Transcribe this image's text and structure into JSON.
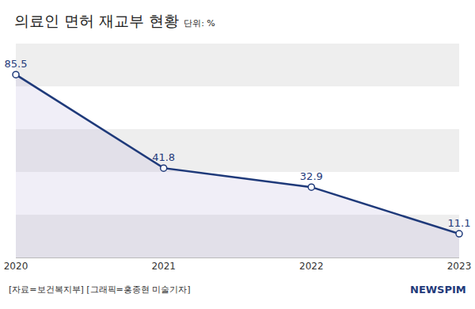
{
  "chart_data": {
    "type": "line",
    "title": "의료인 면허 재교부 현황",
    "subtitle": "단위: %",
    "categories": [
      "2020",
      "2021",
      "2022",
      "2023"
    ],
    "values": [
      85.5,
      41.8,
      32.9,
      11.1
    ],
    "color": "#1f3a7a",
    "marker": "circle",
    "data_labels": true,
    "tick_labels": "x",
    "ylim": [
      0,
      100
    ],
    "yticks": [
      0,
      20,
      40,
      60,
      80,
      100
    ],
    "grid": true,
    "annotations": [
      "[자료=보건복지부] [그래픽=홍종현 미술기자]",
      "NEWSPIM"
    ]
  }
}
